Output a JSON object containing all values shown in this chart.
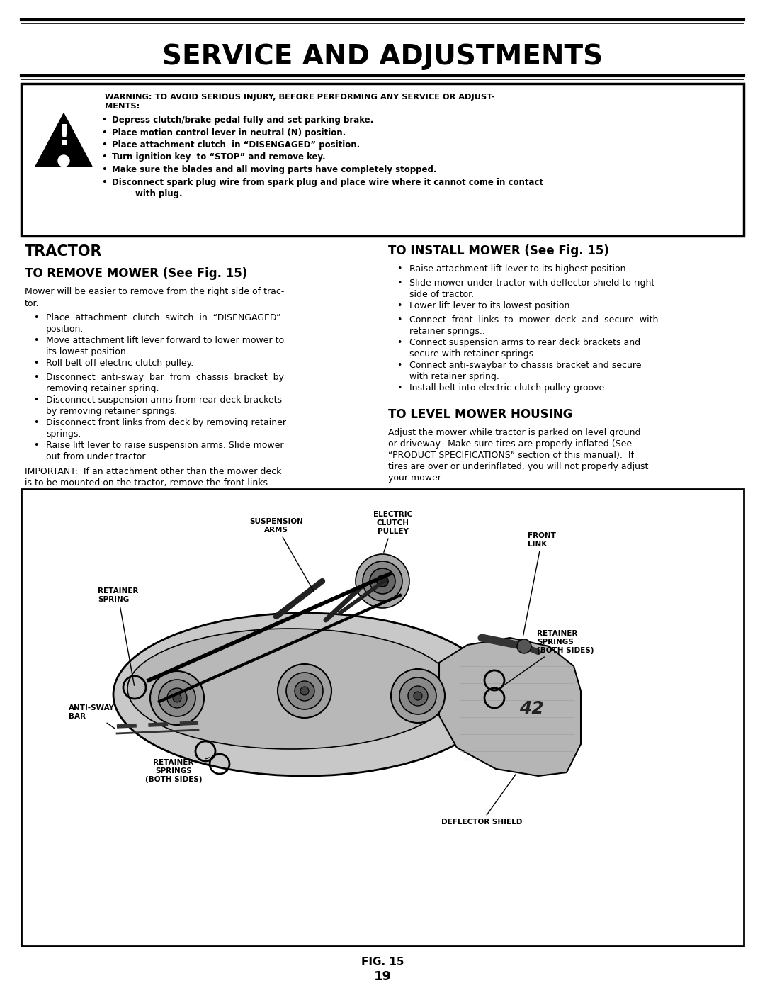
{
  "title": "SERVICE AND ADJUSTMENTS",
  "page_bg": "#ffffff",
  "warning_header": "WARNING: TO AVOID SERIOUS INJURY, BEFORE PERFORMING ANY SERVICE OR ADJUST-\nMENTS:",
  "warning_bullets": [
    "Depress clutch/brake pedal fully and set parking brake.",
    "Place motion control lever in neutral (N) position.",
    "Place attachment clutch  in “DISENGAGED” position.",
    "Turn ignition key  to “STOP” and remove key.",
    "Make sure the blades and all moving parts have completely stopped.",
    "Disconnect spark plug wire from spark plug and place wire where it cannot come in contact\n        with plug."
  ],
  "section_left_title": "TRACTOR",
  "subsection_left_title": "TO REMOVE MOWER (See Fig. 15)",
  "left_intro": "Mower will be easier to remove from the right side of trac-\ntor.",
  "left_bullets": [
    "Place  attachment  clutch  switch  in  “DISENGAGED”\nposition.",
    "Move attachment lift lever forward to lower mower to\nits lowest position.",
    "Roll belt off electric clutch pulley.",
    "Disconnect  anti-sway  bar  from  chassis  bracket  by\nremoving retainer spring.",
    "Disconnect suspension arms from rear deck brackets\nby removing retainer springs.",
    "Disconnect front links from deck by removing retainer\nsprings.",
    "Raise lift lever to raise suspension arms. Slide mower\nout from under tractor."
  ],
  "left_important": "IMPORTANT:  If an attachment other than the mower deck\nis to be mounted on the tractor, remove the front links.",
  "right_title": "TO INSTALL MOWER (See Fig. 15)",
  "right_bullets": [
    "Raise attachment lift lever to its highest position.",
    "Slide mower under tractor with deflector shield to right\nside of tractor.",
    "Lower lift lever to its lowest position.",
    "Connect  front  links  to  mower  deck  and  secure  with\nretainer springs..",
    "Connect suspension arms to rear deck brackets and\nsecure with retainer springs.",
    "Connect anti-swaybar to chassis bracket and secure\nwith retainer spring.",
    "Install belt into electric clutch pulley groove."
  ],
  "level_title": "TO LEVEL MOWER HOUSING",
  "level_text": "Adjust the mower while tractor is parked on level ground\nor driveway.  Make sure tires are properly inflated (See\n“PRODUCT SPECIFICATIONS” section of this manual).  If\ntires are over or underinflated, you will not properly adjust\nyour mower.",
  "fig_caption": "FIG. 15",
  "page_number": "19"
}
